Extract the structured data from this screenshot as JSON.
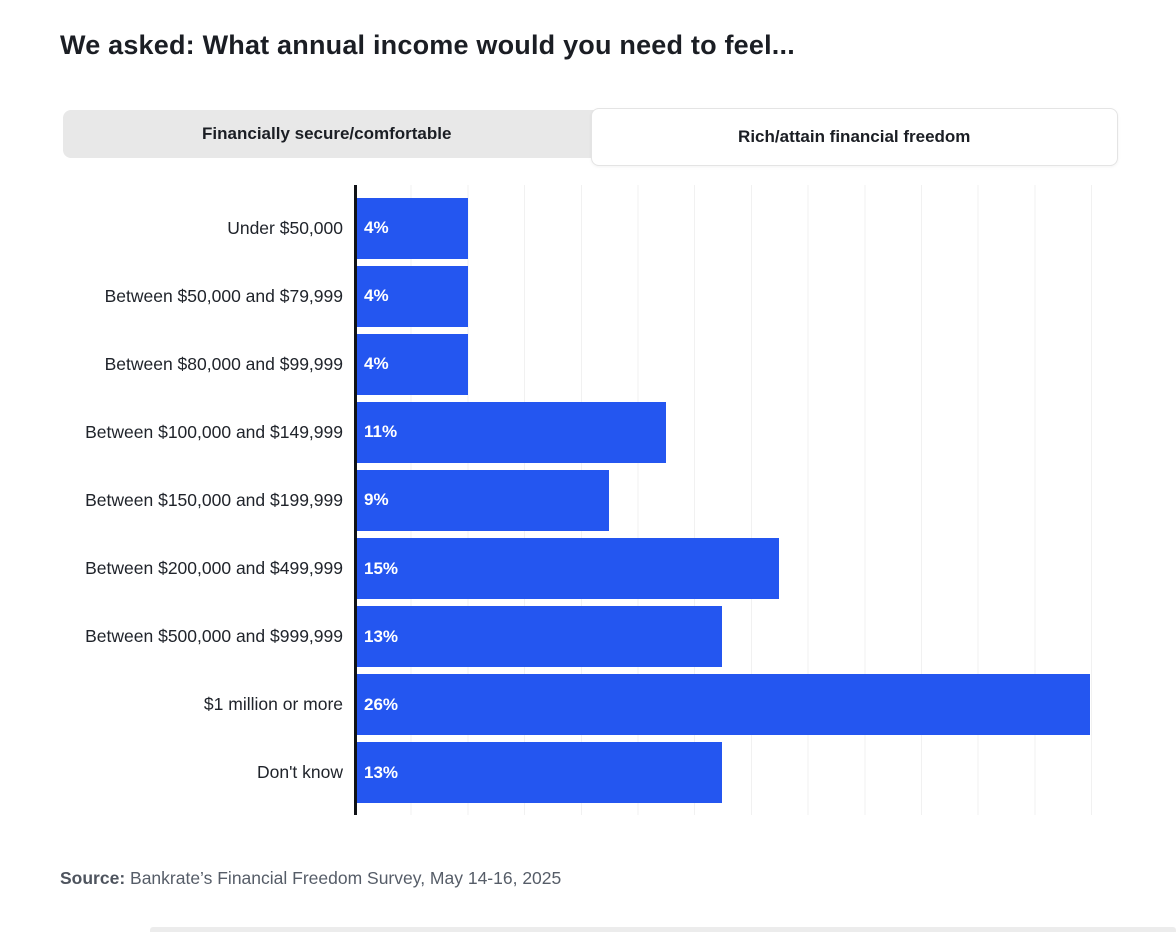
{
  "page": {
    "title": "We asked: What annual income would you need to feel..."
  },
  "tabs": [
    {
      "label": "Financially secure/comfortable",
      "active": false
    },
    {
      "label": "Rich/attain financial freedom",
      "active": true
    }
  ],
  "chart_data": {
    "type": "bar",
    "orientation": "horizontal",
    "title": "",
    "xlabel": "",
    "ylabel": "",
    "categories": [
      "Under $50,000",
      "Between $50,000 and $79,999",
      "Between $80,000 and $99,999",
      "Between $100,000 and $149,999",
      "Between $150,000 and $199,999",
      "Between $200,000 and $499,999",
      "Between $500,000 and $999,999",
      "$1 million or more",
      "Don't know"
    ],
    "values": [
      4,
      4,
      4,
      11,
      9,
      15,
      13,
      26,
      13
    ],
    "value_labels": [
      "4%",
      "4%",
      "4%",
      "11%",
      "9%",
      "15%",
      "13%",
      "26%",
      "13%"
    ],
    "xlim": [
      0,
      27
    ],
    "grid": true,
    "legend": "none",
    "bar_color": "#2456f0",
    "axis_color": "#101317",
    "gridline_color": "#f1f1f1",
    "value_label_color": "#ffffff"
  },
  "source": {
    "label": "Source:",
    "text": " Bankrate’s Financial Freedom Survey, May 14-16, 2025"
  }
}
